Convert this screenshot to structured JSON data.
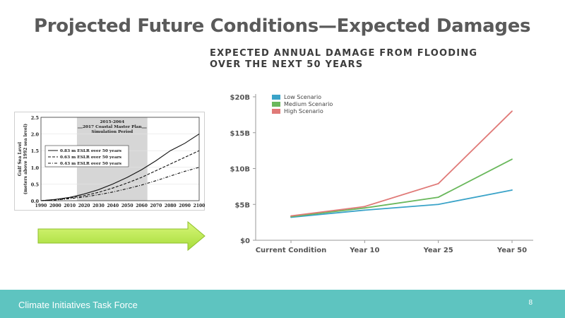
{
  "slide": {
    "title": "Projected Future Conditions—Expected Damages",
    "chart_heading_line1": "EXPECTED ANNUAL DAMAGE FROM FLOODING",
    "chart_heading_line2": "OVER THE NEXT 50 YEARS"
  },
  "footer": {
    "organization": "Climate Initiatives Task Force",
    "page_number": "8",
    "color": "#5ec4c0"
  },
  "arrow": {
    "icon": "right-arrow-icon",
    "color": "#b4e84a"
  },
  "chart_data": [
    {
      "type": "line",
      "title": "",
      "categories": [
        "Current Condition",
        "Year 10",
        "Year 25",
        "Year 50"
      ],
      "y_tick_labels": [
        "$0",
        "$5B",
        "$10B",
        "$15B",
        "$20B"
      ],
      "y_ticks": [
        0,
        5,
        10,
        15,
        20
      ],
      "ylim": [
        0,
        20
      ],
      "unit": "billion USD",
      "legend_position": "top-left",
      "grid": false,
      "series": [
        {
          "name": "Low Scenario",
          "color": "#3aa3c8",
          "values": [
            3.2,
            4.2,
            5.0,
            7.0
          ]
        },
        {
          "name": "Medium Scenario",
          "color": "#6ab85c",
          "values": [
            3.3,
            4.5,
            6.0,
            11.3
          ]
        },
        {
          "name": "High Scenario",
          "color": "#e07a78",
          "values": [
            3.4,
            4.7,
            7.9,
            18.0
          ]
        }
      ]
    },
    {
      "type": "line",
      "title": "",
      "ylabel_line1": "Gulf Sea Level",
      "ylabel_line2": "(meters above 1992 sea level)",
      "x": [
        1990,
        2000,
        2010,
        2020,
        2030,
        2040,
        2050,
        2060,
        2070,
        2080,
        2090,
        2100
      ],
      "x_tick_labels": [
        "1990",
        "2000",
        "2010",
        "2020",
        "2030",
        "2040",
        "2050",
        "2060",
        "2070",
        "2080",
        "2090",
        "2100"
      ],
      "y_tick_labels": [
        "0.0",
        "0.5",
        "1.0",
        "1.5",
        "2.0",
        "2.5"
      ],
      "y_ticks": [
        0,
        0.5,
        1.0,
        1.5,
        2.0,
        2.5
      ],
      "xlim": [
        1990,
        2100
      ],
      "ylim": [
        0,
        2.5
      ],
      "shaded_period": {
        "start": 2015,
        "end": 2064,
        "label_line1": "2015-2064",
        "label_line2": "2017 Coastal Master Plan",
        "label_line3": "Simulation Period"
      },
      "series": [
        {
          "name": "0.83 m ESLR over 50 years",
          "dash": "solid",
          "x": [
            1990,
            2000,
            2010,
            2020,
            2030,
            2040,
            2050,
            2060,
            2070,
            2080,
            2090,
            2100
          ],
          "values": [
            0,
            0.04,
            0.1,
            0.2,
            0.33,
            0.5,
            0.7,
            0.93,
            1.2,
            1.5,
            1.72,
            2.0
          ]
        },
        {
          "name": "0.63 m ESLR over 50 years",
          "dash": "dashed",
          "x": [
            1990,
            2000,
            2010,
            2020,
            2030,
            2040,
            2050,
            2060,
            2070,
            2080,
            2090,
            2100
          ],
          "values": [
            0,
            0.03,
            0.08,
            0.15,
            0.25,
            0.38,
            0.53,
            0.7,
            0.9,
            1.1,
            1.3,
            1.5
          ]
        },
        {
          "name": "0.43 m ESLR over 50 years",
          "dash": "dashdot",
          "x": [
            1990,
            2000,
            2010,
            2020,
            2030,
            2040,
            2050,
            2060,
            2070,
            2080,
            2090,
            2100
          ],
          "values": [
            0,
            0.02,
            0.06,
            0.11,
            0.18,
            0.26,
            0.36,
            0.47,
            0.6,
            0.74,
            0.88,
            1.0
          ]
        }
      ]
    }
  ]
}
